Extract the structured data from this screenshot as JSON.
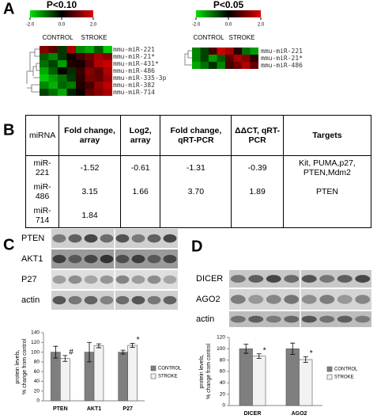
{
  "A": {
    "label": "A",
    "heatmaps": [
      {
        "title": "P<0.10",
        "scale": [
          {
            "value": -2,
            "label": "-2.0"
          },
          {
            "value": 0,
            "label": "0.0"
          },
          {
            "value": 2,
            "label": "2.0"
          }
        ],
        "groups": [
          "CONTROL",
          "STROKE"
        ],
        "rows": [
          "mmu-miR-221",
          "mmu-miR-21*",
          "mmu-miR-431*",
          "mmu-miR-486",
          "mmu-miR-335-3p",
          "mmu-miR-382",
          "mmu-miR-714"
        ],
        "values": [
          [
            1.2,
            0.8,
            -0.5,
            1.5,
            -1.2,
            -1.5,
            -0.8,
            -1.8
          ],
          [
            -0.8,
            -1.2,
            -0.5,
            0.2,
            0.6,
            1.0,
            1.5,
            1.2
          ],
          [
            -1.0,
            -0.6,
            -1.4,
            0.3,
            0.2,
            0.8,
            1.6,
            1.8
          ],
          [
            -1.5,
            -0.8,
            0.1,
            -0.4,
            0.5,
            1.2,
            0.9,
            1.6
          ],
          [
            -1.8,
            -1.4,
            -1.0,
            -0.5,
            0.4,
            1.1,
            0.9,
            1.4
          ],
          [
            -1.2,
            -1.6,
            -0.9,
            -1.1,
            0.3,
            0.6,
            1.3,
            1.7
          ],
          [
            -0.6,
            -1.0,
            -1.5,
            -0.3,
            0.1,
            0.9,
            1.2,
            1.5
          ]
        ]
      },
      {
        "title": "P<0.05",
        "scale": [
          {
            "value": -2,
            "label": "-2.0"
          },
          {
            "value": 0,
            "label": "0.0"
          },
          {
            "value": 2,
            "label": "2.0"
          }
        ],
        "groups": [
          "CONTROL",
          "STROKE"
        ],
        "rows": [
          "mmu-miR-221",
          "mmu-miR-21*",
          "mmu-miR-486"
        ],
        "values": [
          [
            -1.2,
            -0.6,
            0.6,
            1.8,
            1.5,
            0.4,
            -1.0,
            -1.4
          ],
          [
            -1.2,
            -0.6,
            -1.4,
            -0.8,
            0.8,
            1.5,
            1.2,
            0.4
          ],
          [
            -1.5,
            -1.0,
            -0.4,
            -1.2,
            0.6,
            1.0,
            1.6,
            0.9
          ]
        ]
      }
    ]
  },
  "B": {
    "label": "B",
    "table": {
      "header": [
        "miRNA",
        "Fold change, array",
        "Log2, array",
        "Fold change, qRT-PCR",
        "ΔΔCT, qRT-PCR",
        "Targets"
      ],
      "rows": [
        [
          "miR-221",
          "-1.52",
          "-0.61",
          "-1.31",
          "-0.39",
          "Kit, PUMA,p27, PTEN,Mdm2"
        ],
        [
          "miR-486",
          "3.15",
          "1.66",
          "3.70",
          "1.89",
          "PTEN"
        ],
        [
          "miR-714",
          "1.84",
          null,
          null,
          null,
          null
        ]
      ]
    }
  },
  "C": {
    "label": "C",
    "blot_labels": [
      "PTEN",
      "AKT1",
      "P27",
      "actin"
    ],
    "chart": {
      "type": "bar",
      "ylabel": [
        "protein levels,",
        "% change from control"
      ],
      "categories": [
        "PTEN",
        "AKT1",
        "P27"
      ],
      "series": [
        {
          "name": "CONTROL",
          "color": "#7f7f7f",
          "values": [
            100,
            100,
            100
          ],
          "errors": [
            12,
            20,
            4
          ]
        },
        {
          "name": "STROKE",
          "color": "#f2f2f2",
          "values": [
            87,
            113,
            114
          ],
          "errors": [
            6,
            4,
            4
          ],
          "significance": [
            "#",
            null,
            "*"
          ]
        }
      ],
      "ylim": [
        0,
        140
      ],
      "yticks": [
        0,
        20,
        40,
        60,
        80,
        100,
        120,
        140
      ]
    }
  },
  "D": {
    "label": "D",
    "blot_labels": [
      "DICER",
      "AGO2",
      "actin"
    ],
    "chart": {
      "type": "bar",
      "ylabel": [
        "protein levels,",
        "% change from control"
      ],
      "categories": [
        "DICER",
        "AGO2"
      ],
      "series": [
        {
          "name": "CONTROL",
          "color": "#7f7f7f",
          "values": [
            100,
            100
          ],
          "errors": [
            8,
            10
          ]
        },
        {
          "name": "STROKE",
          "color": "#f2f2f2",
          "values": [
            87,
            81
          ],
          "errors": [
            4,
            5
          ],
          "significance": [
            "*",
            "*"
          ]
        }
      ],
      "ylim": [
        0,
        120
      ],
      "yticks": [
        0,
        20,
        40,
        60,
        80,
        100,
        120
      ]
    }
  }
}
